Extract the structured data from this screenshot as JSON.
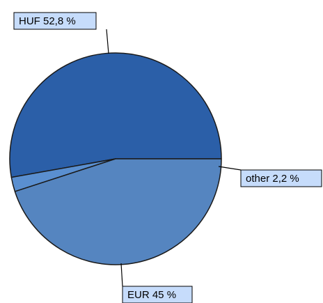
{
  "chart_data": {
    "type": "pie",
    "slices": [
      {
        "label": "HUF 52,8 %",
        "category": "HUF",
        "value": 52.8,
        "color": "#2b5fa8"
      },
      {
        "label": "other 2,2 %",
        "category": "other",
        "value": 2.2,
        "color": "#5a8fd0"
      },
      {
        "label": "EUR 45 %",
        "category": "EUR",
        "value": 45.0,
        "color": "#5585c0"
      }
    ],
    "legend": "none",
    "label_box_color": "#c6dcfb",
    "stroke_color": "#1a1a1a"
  }
}
